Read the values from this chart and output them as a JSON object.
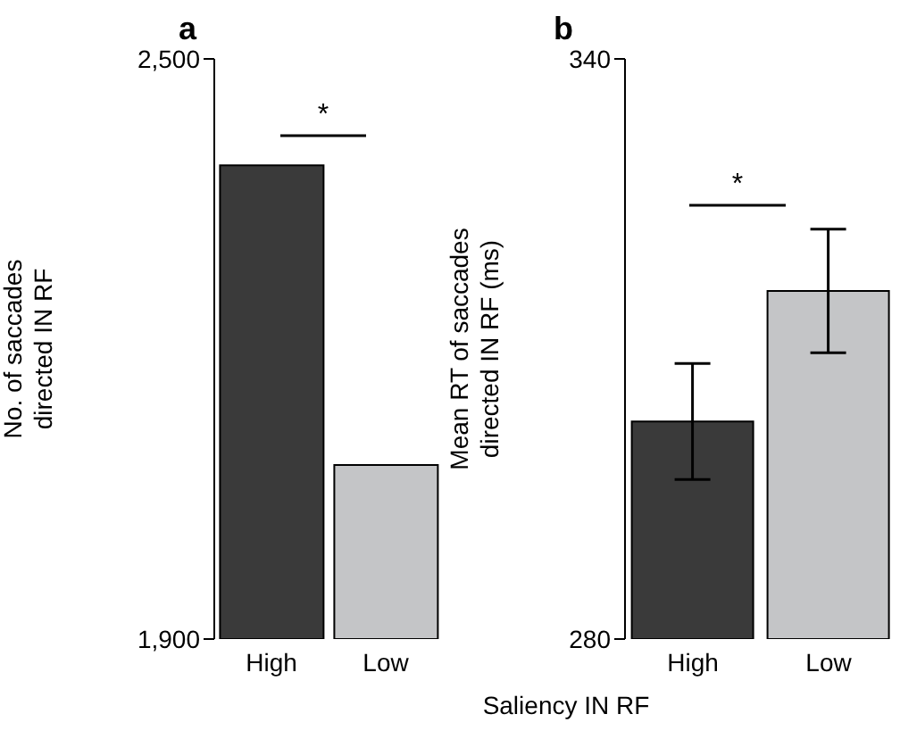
{
  "chart_data": [
    {
      "type": "bar",
      "title": "a",
      "ylabel": "No. of saccades directed IN RF",
      "categories": [
        "High",
        "Low"
      ],
      "values": [
        2390,
        2080
      ],
      "colors": [
        "#3a3a3a",
        "#c4c5c7"
      ],
      "ylim": [
        1900,
        2500
      ],
      "yticks": [
        {
          "value": 1900,
          "label": "1,900"
        },
        {
          "value": 2500,
          "label": "2,500"
        }
      ],
      "annotations": [
        "*"
      ]
    },
    {
      "type": "bar",
      "title": "b",
      "ylabel": "Mean RT of saccades directed IN RF (ms)",
      "xlabel": "Saliency IN RF",
      "categories": [
        "High",
        "Low"
      ],
      "values": [
        302.5,
        316
      ],
      "errors": [
        6,
        6.4
      ],
      "colors": [
        "#3a3a3a",
        "#c4c5c7"
      ],
      "ylim": [
        280,
        340
      ],
      "yticks": [
        280,
        340
      ],
      "annotations": [
        "*"
      ]
    }
  ]
}
